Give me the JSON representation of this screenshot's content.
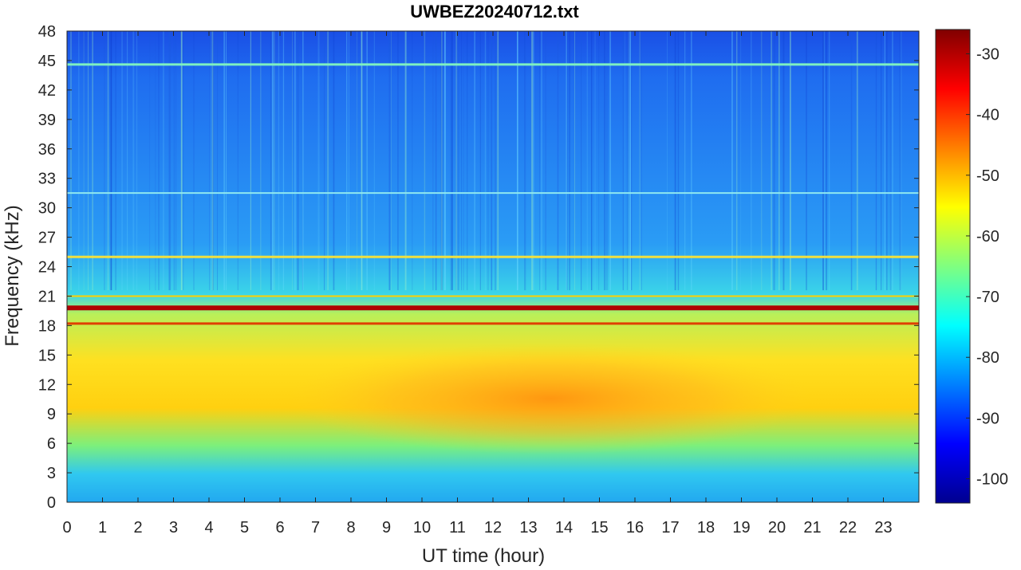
{
  "chart_data": {
    "type": "heatmap",
    "title": "UWBEZ20240712.txt",
    "xlabel": "UT time (hour)",
    "ylabel": "Frequency (kHz)",
    "xlim": [
      0,
      24
    ],
    "ylim": [
      0,
      48
    ],
    "x_ticks": [
      "0",
      "1",
      "2",
      "3",
      "4",
      "5",
      "6",
      "7",
      "8",
      "9",
      "10",
      "11",
      "12",
      "13",
      "14",
      "15",
      "16",
      "17",
      "18",
      "19",
      "20",
      "21",
      "22",
      "23"
    ],
    "y_ticks": [
      "0",
      "3",
      "6",
      "9",
      "12",
      "15",
      "18",
      "21",
      "24",
      "27",
      "30",
      "33",
      "36",
      "39",
      "42",
      "45",
      "48"
    ],
    "colorbar": {
      "ticks": [
        "-30",
        "-40",
        "-50",
        "-60",
        "-70",
        "-80",
        "-90",
        "-100"
      ],
      "range": [
        -104,
        -26
      ],
      "colormap": "jet"
    },
    "narrowband_lines_khz": [
      19.8,
      18.2,
      21.0,
      25.0,
      44.6,
      31.5
    ],
    "notes": ""
  }
}
